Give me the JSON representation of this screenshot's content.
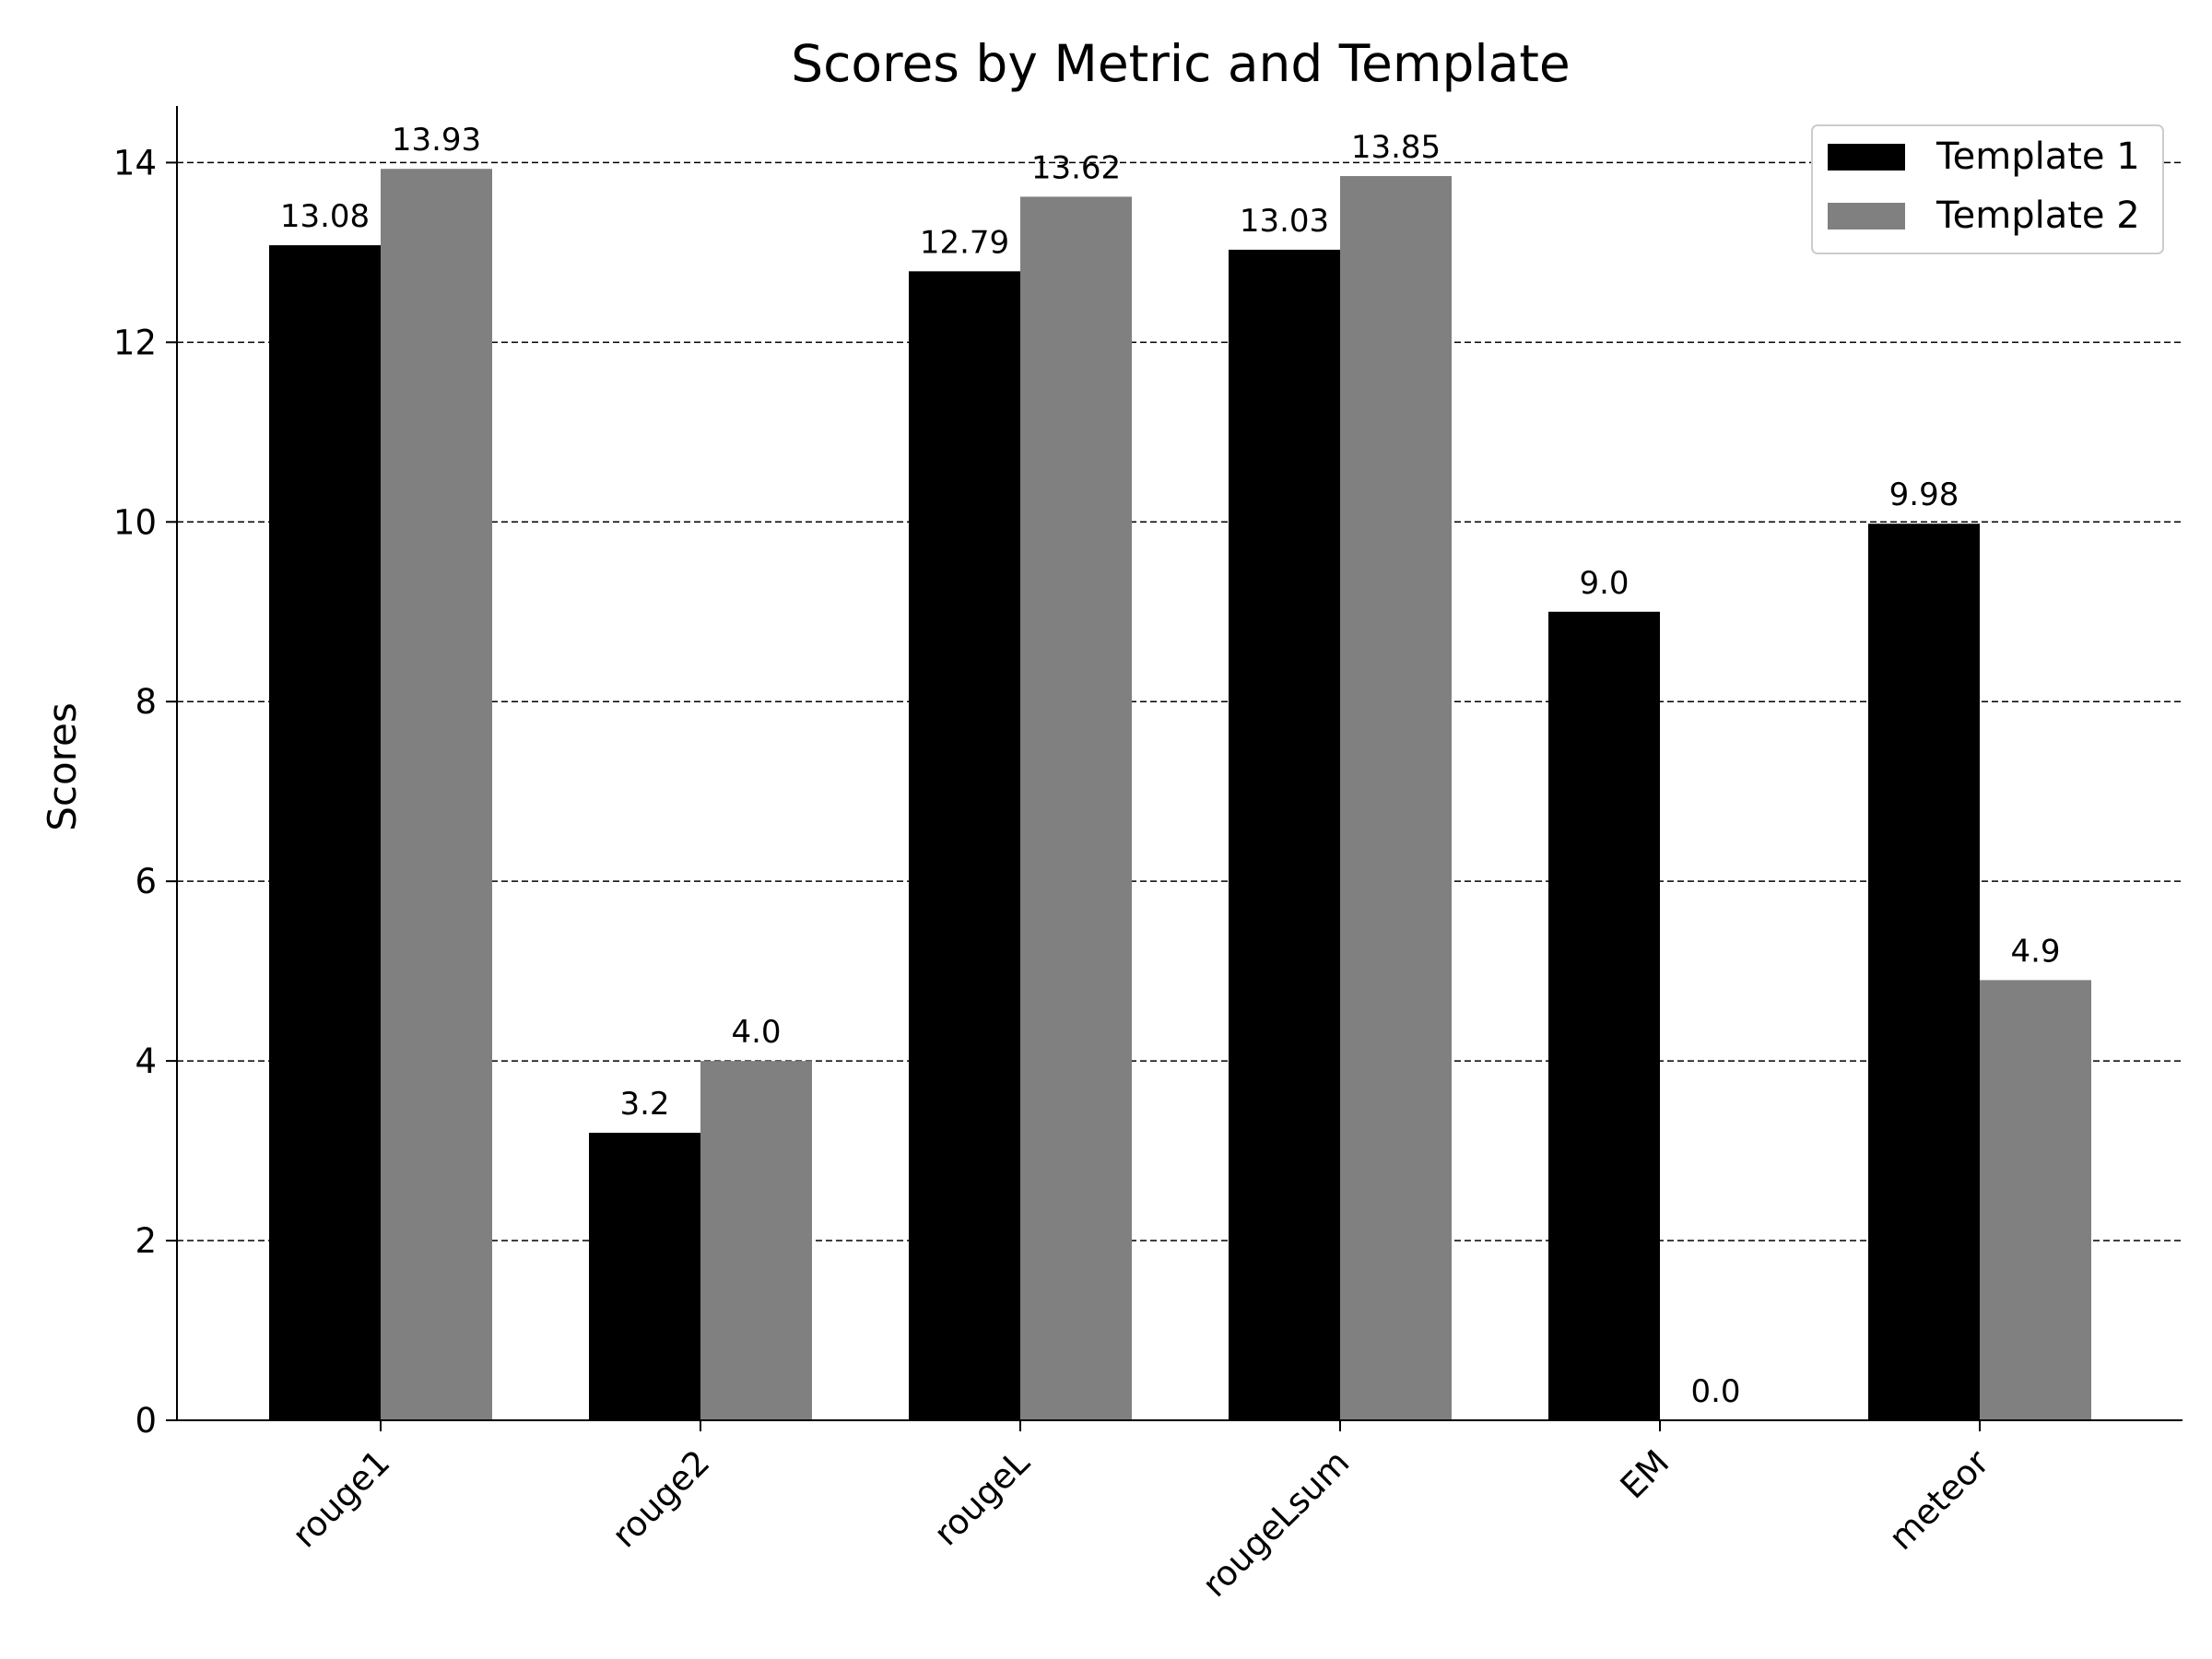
{
  "chart_data": {
    "type": "bar",
    "title": "Scores by Metric and Template",
    "xlabel": "",
    "ylabel": "Scores",
    "categories": [
      "rouge1",
      "rouge2",
      "rougeL",
      "rougeLsum",
      "EM",
      "meteor"
    ],
    "series": [
      {
        "name": "Template 1",
        "color": "#000000",
        "values": [
          13.08,
          3.2,
          12.79,
          13.03,
          9.0,
          9.98
        ]
      },
      {
        "name": "Template 2",
        "color": "#808080",
        "values": [
          13.93,
          4.0,
          13.62,
          13.85,
          0.0,
          4.9
        ]
      }
    ],
    "data_labels": [
      [
        "13.08",
        "3.2",
        "12.79",
        "13.03",
        "9.0",
        "9.98"
      ],
      [
        "13.93",
        "4.0",
        "13.62",
        "13.85",
        "0.0",
        "4.9"
      ]
    ],
    "ylim": [
      0,
      14.63
    ],
    "yticks": [
      "0",
      "2",
      "4",
      "6",
      "8",
      "10",
      "12",
      "14"
    ],
    "grid": "y-dashed",
    "legend_position": "top-right"
  }
}
